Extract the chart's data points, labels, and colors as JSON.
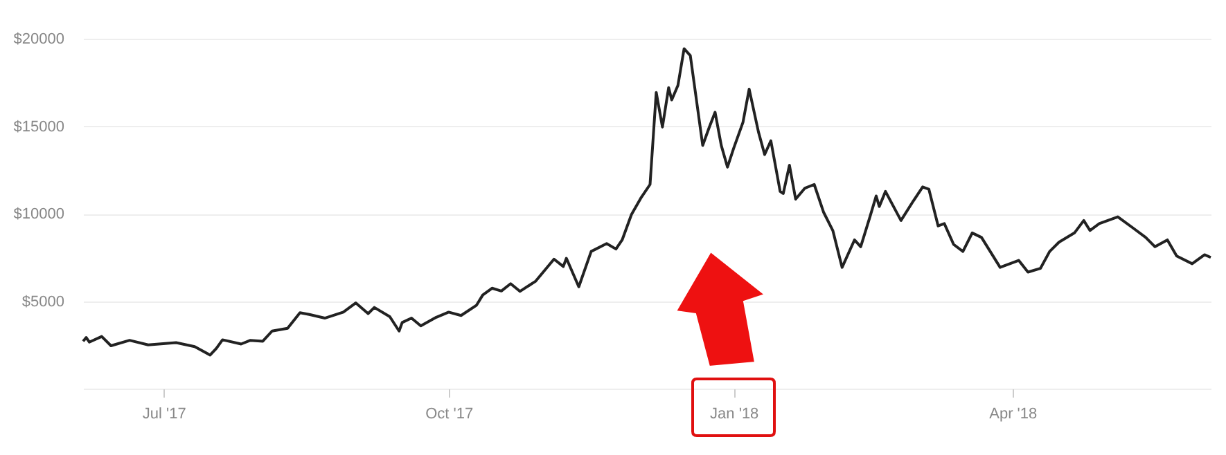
{
  "chart_data": {
    "type": "line",
    "x": [
      "2017-06-05",
      "2017-06-06",
      "2017-06-07",
      "2017-06-11",
      "2017-06-14",
      "2017-06-20",
      "2017-06-26",
      "2017-07-05",
      "2017-07-11",
      "2017-07-16",
      "2017-07-18",
      "2017-07-20",
      "2017-07-26",
      "2017-07-29",
      "2017-08-02",
      "2017-08-05",
      "2017-08-10",
      "2017-08-14",
      "2017-08-17",
      "2017-08-22",
      "2017-08-28",
      "2017-09-01",
      "2017-09-05",
      "2017-09-07",
      "2017-09-12",
      "2017-09-15",
      "2017-09-16",
      "2017-09-19",
      "2017-09-22",
      "2017-09-27",
      "2017-10-01",
      "2017-10-05",
      "2017-10-10",
      "2017-10-12",
      "2017-10-15",
      "2017-10-18",
      "2017-10-21",
      "2017-10-24",
      "2017-10-29",
      "2017-11-04",
      "2017-11-07",
      "2017-11-08",
      "2017-11-12",
      "2017-11-16",
      "2017-11-21",
      "2017-11-24",
      "2017-11-26",
      "2017-11-29",
      "2017-12-02",
      "2017-12-05",
      "2017-12-07",
      "2017-12-09",
      "2017-12-11",
      "2017-12-12",
      "2017-12-14",
      "2017-12-16",
      "2017-12-18",
      "2017-12-22",
      "2017-12-24",
      "2017-12-26",
      "2017-12-28",
      "2017-12-30",
      "2018-01-01",
      "2018-01-04",
      "2018-01-06",
      "2018-01-09",
      "2018-01-11",
      "2018-01-13",
      "2018-01-16",
      "2018-01-17",
      "2018-01-19",
      "2018-01-21",
      "2018-01-24",
      "2018-01-27",
      "2018-01-30",
      "2018-02-02",
      "2018-02-05",
      "2018-02-09",
      "2018-02-11",
      "2018-02-14",
      "2018-02-16",
      "2018-02-17",
      "2018-02-19",
      "2018-02-24",
      "2018-02-28",
      "2018-03-03",
      "2018-03-05",
      "2018-03-08",
      "2018-03-10",
      "2018-03-13",
      "2018-03-16",
      "2018-03-19",
      "2018-03-22",
      "2018-03-28",
      "2018-04-03",
      "2018-04-06",
      "2018-04-10",
      "2018-04-13",
      "2018-04-16",
      "2018-04-21",
      "2018-04-24",
      "2018-04-26",
      "2018-04-29",
      "2018-05-05",
      "2018-05-10",
      "2018-05-14",
      "2018-05-17",
      "2018-05-21",
      "2018-05-24",
      "2018-05-29",
      "2018-06-02",
      "2018-06-04"
    ],
    "series": [
      {
        "color": "#222222",
        "values": [
          2710,
          2920,
          2660,
          2980,
          2450,
          2760,
          2500,
          2630,
          2400,
          1920,
          2300,
          2790,
          2550,
          2760,
          2710,
          3290,
          3450,
          4340,
          4240,
          4030,
          4370,
          4900,
          4290,
          4640,
          4110,
          3290,
          3780,
          4030,
          3590,
          4080,
          4370,
          4180,
          4770,
          5350,
          5740,
          5580,
          6000,
          5560,
          6130,
          7400,
          6980,
          7450,
          5820,
          7840,
          8290,
          7980,
          8500,
          9950,
          10880,
          11670,
          16930,
          14950,
          17200,
          16500,
          17330,
          19430,
          19040,
          13900,
          14880,
          15800,
          13900,
          12660,
          13740,
          15220,
          17120,
          14670,
          13380,
          14170,
          11270,
          11150,
          12770,
          10830,
          11460,
          11670,
          10090,
          9040,
          6930,
          8500,
          8110,
          9830,
          11010,
          10410,
          11270,
          9610,
          10730,
          11530,
          11400,
          9300,
          9430,
          8240,
          7840,
          8900,
          8640,
          6930,
          7330,
          6660,
          6870,
          7840,
          8370,
          8900,
          9610,
          9040,
          9430,
          9820,
          9170,
          8640,
          8110,
          8500,
          7580,
          7140,
          7650,
          7500
        ]
      }
    ],
    "xlim": [
      "2017-06-05",
      "2018-06-04"
    ],
    "xticks": [
      {
        "value": "2017-07-01",
        "label": "Jul '17"
      },
      {
        "value": "2017-10-01",
        "label": "Oct '17"
      },
      {
        "value": "2018-01-01",
        "label": "Jan '18"
      },
      {
        "value": "2018-04-01",
        "label": "Apr '18"
      }
    ],
    "ylim": [
      0,
      20000
    ],
    "yticks": [
      {
        "value": 0,
        "label": null
      },
      {
        "value": 5000,
        "label": "$5000"
      },
      {
        "value": 10000,
        "label": "$10000"
      },
      {
        "value": 15000,
        "label": "$15000"
      },
      {
        "value": 20000,
        "label": "$20000"
      }
    ],
    "grid": "y",
    "marker": "none",
    "line_style": "solid"
  }
}
